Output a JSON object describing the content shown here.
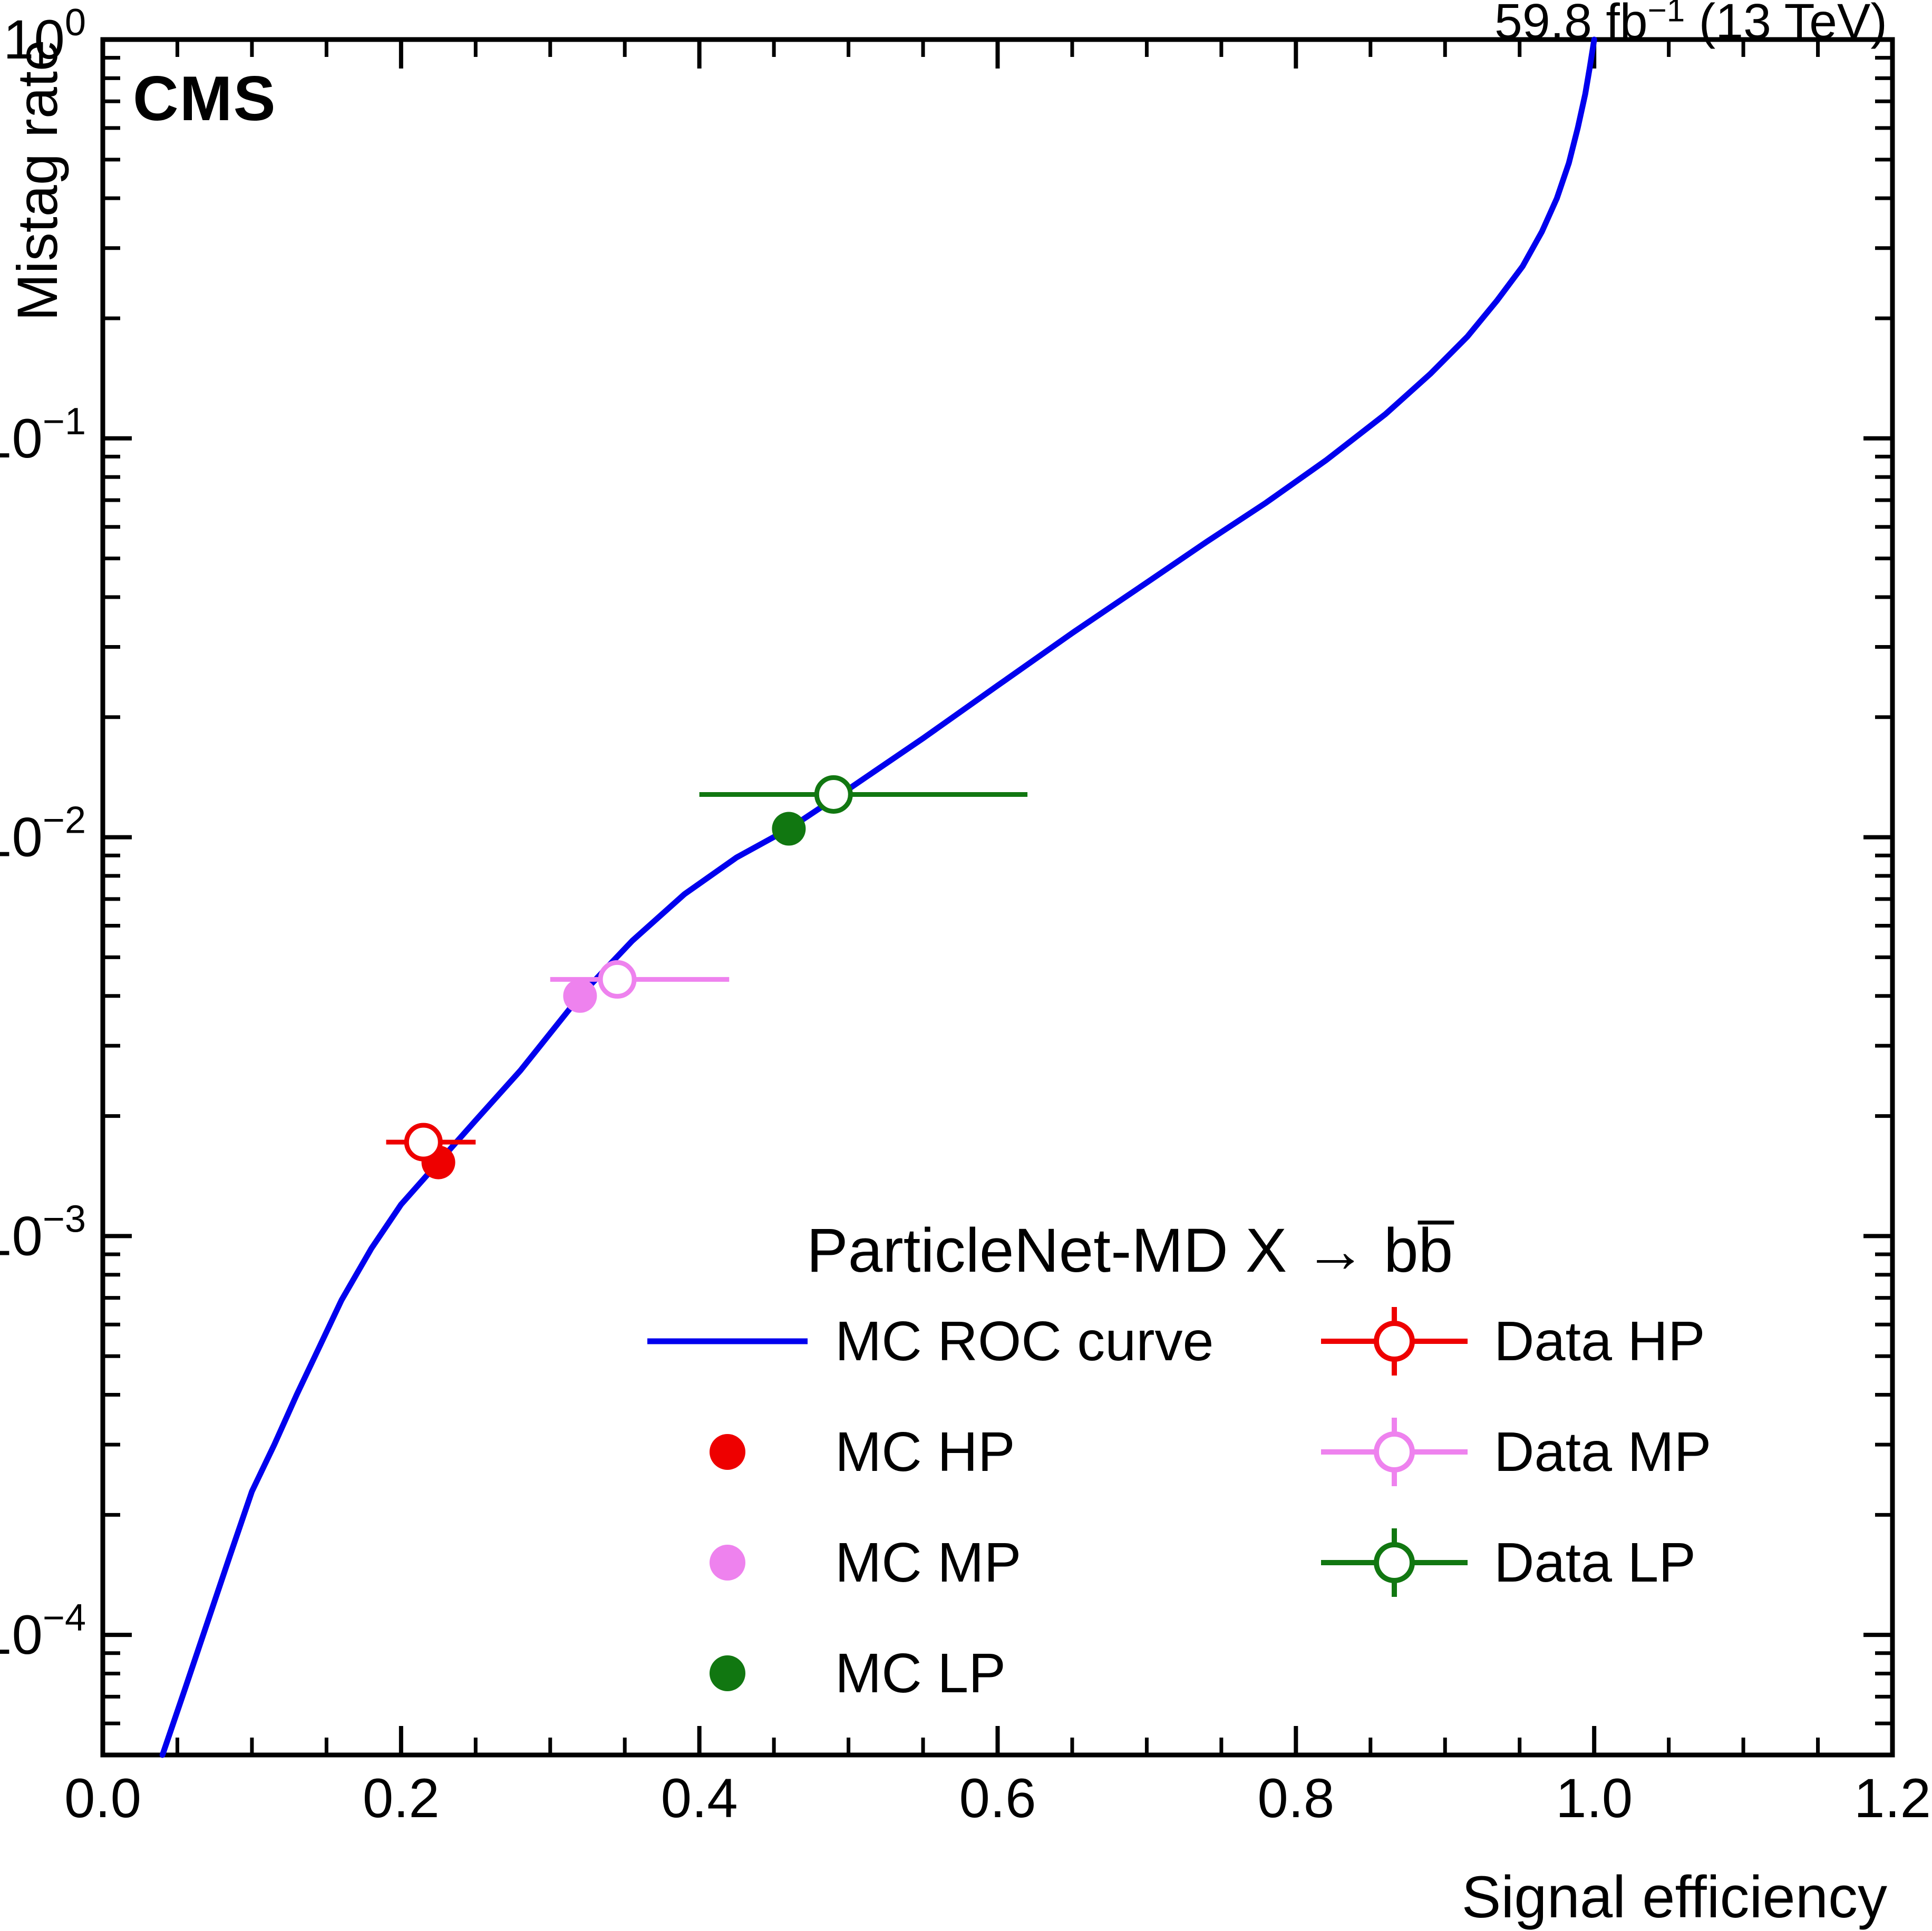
{
  "header": {
    "experiment": "CMS",
    "lumi_prefix": "59.8 fb",
    "lumi_exponent": "−1",
    "lumi_suffix": " (13 TeV)"
  },
  "chart_data": {
    "type": "line",
    "title": "",
    "xlabel": "Signal efficiency",
    "ylabel": "Mistag rate",
    "x_scale": "linear",
    "y_scale": "log",
    "xlim": [
      0.0,
      1.2
    ],
    "ylim": [
      5e-05,
      1.0
    ],
    "x_ticks": [
      0.0,
      0.2,
      0.4,
      0.6,
      0.8,
      1.0,
      1.2
    ],
    "x_tick_labels": [
      "0.0",
      "0.2",
      "0.4",
      "0.6",
      "0.8",
      "1.0",
      "1.2"
    ],
    "x_minor_step": 0.05,
    "y_tick_exponents": [
      0,
      -1,
      -2,
      -3,
      -4
    ],
    "grid": false,
    "legend": {
      "title": "ParticleNet-MD X → bb̅",
      "position": "lower-right"
    },
    "roc_curve": {
      "name": "MC ROC curve",
      "color": "#0000ee",
      "points": [
        [
          0.04,
          5e-05
        ],
        [
          0.055,
          7.3e-05
        ],
        [
          0.07,
          0.000107
        ],
        [
          0.085,
          0.000157
        ],
        [
          0.1,
          0.000229
        ],
        [
          0.115,
          0.0003
        ],
        [
          0.13,
          0.0004
        ],
        [
          0.145,
          0.000525
        ],
        [
          0.16,
          0.00069
        ],
        [
          0.18,
          0.00093
        ],
        [
          0.2,
          0.0012
        ],
        [
          0.225,
          0.00153
        ],
        [
          0.25,
          0.00195
        ],
        [
          0.28,
          0.0026
        ],
        [
          0.32,
          0.004
        ],
        [
          0.355,
          0.0055
        ],
        [
          0.39,
          0.0072
        ],
        [
          0.425,
          0.0089
        ],
        [
          0.46,
          0.0105
        ],
        [
          0.5,
          0.0132
        ],
        [
          0.55,
          0.0177
        ],
        [
          0.6,
          0.024
        ],
        [
          0.65,
          0.0325
        ],
        [
          0.7,
          0.0435
        ],
        [
          0.74,
          0.055
        ],
        [
          0.78,
          0.069
        ],
        [
          0.82,
          0.088
        ],
        [
          0.86,
          0.115
        ],
        [
          0.89,
          0.145
        ],
        [
          0.915,
          0.18
        ],
        [
          0.935,
          0.222
        ],
        [
          0.952,
          0.27
        ],
        [
          0.965,
          0.33
        ],
        [
          0.975,
          0.4
        ],
        [
          0.983,
          0.49
        ],
        [
          0.989,
          0.6
        ],
        [
          0.994,
          0.73
        ],
        [
          0.997,
          0.85
        ],
        [
          1.0,
          1.0
        ]
      ]
    },
    "series": [
      {
        "name": "MC HP",
        "marker": "filled-circle",
        "color": "#ee0000",
        "points": [
          {
            "x": 0.225,
            "y": 0.00153
          }
        ]
      },
      {
        "name": "MC MP",
        "marker": "filled-circle",
        "color": "#ee82ee",
        "points": [
          {
            "x": 0.32,
            "y": 0.004
          }
        ]
      },
      {
        "name": "MC LP",
        "marker": "filled-circle",
        "color": "#117711",
        "points": [
          {
            "x": 0.46,
            "y": 0.0105
          }
        ]
      },
      {
        "name": "Data HP",
        "marker": "open-circle",
        "color": "#ee0000",
        "points": [
          {
            "x": 0.215,
            "y": 0.00172,
            "xerr_lo": 0.025,
            "xerr_hi": 0.035
          }
        ]
      },
      {
        "name": "Data MP",
        "marker": "open-circle",
        "color": "#ee82ee",
        "points": [
          {
            "x": 0.345,
            "y": 0.0044,
            "xerr_lo": 0.045,
            "xerr_hi": 0.075
          }
        ]
      },
      {
        "name": "Data LP",
        "marker": "open-circle",
        "color": "#117711",
        "points": [
          {
            "x": 0.49,
            "y": 0.0128,
            "xerr_lo": 0.09,
            "xerr_hi": 0.13
          }
        ]
      }
    ]
  }
}
